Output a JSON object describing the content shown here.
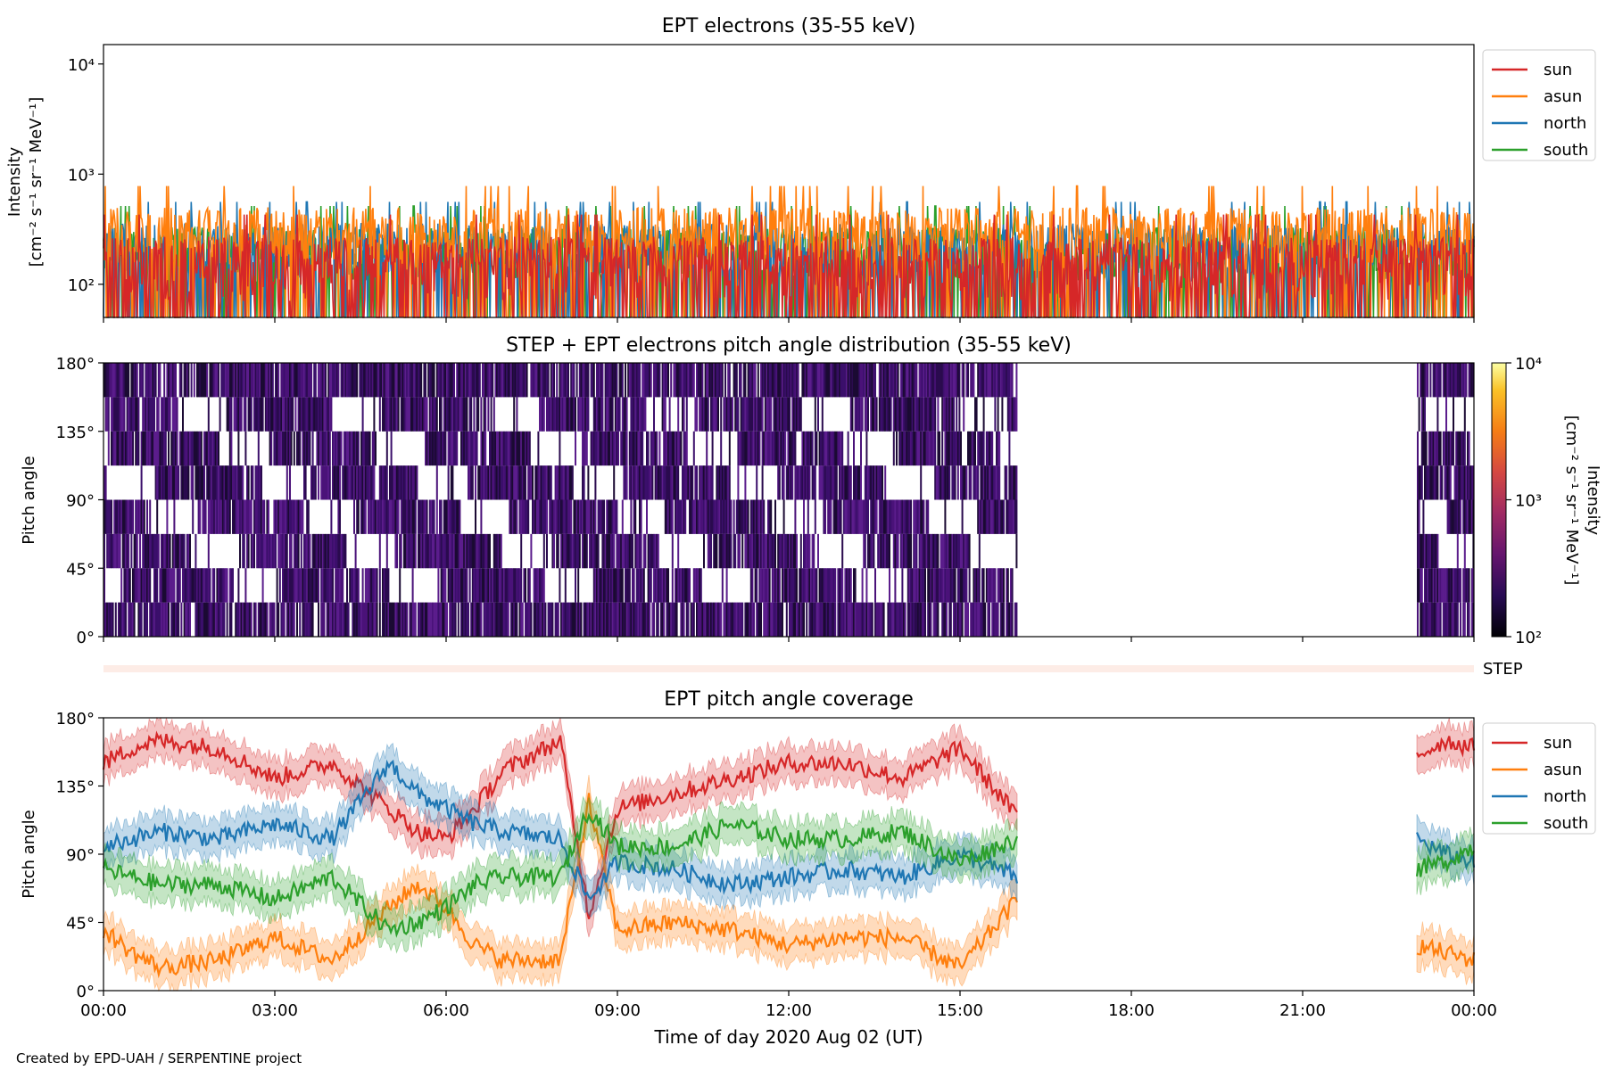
{
  "footer": "Created by EPD-UAH / SERPENTINE project",
  "colors": {
    "sun": "#d62728",
    "asun": "#ff7f0e",
    "north": "#1f77b4",
    "south": "#2ca02c",
    "pad_low": "#2a0b4e",
    "pad_high": "#5b1d8c",
    "step_strip": "#fdece6"
  },
  "chart_data": [
    {
      "type": "line",
      "title": "EPT electrons (35-55 keV)",
      "ylabel_line1": "Intensity",
      "ylabel_line2": "[cm⁻² s⁻¹ sr⁻¹ MeV⁻¹]",
      "yscale": "log",
      "ylim": [
        50,
        15000
      ],
      "yticks": [
        {
          "value": 100,
          "label": "10²"
        },
        {
          "value": 1000,
          "label": "10³"
        },
        {
          "value": 10000,
          "label": "10⁴"
        }
      ],
      "xlim_hours": [
        0,
        24
      ],
      "legend_position": "outside-right-top",
      "series": [
        {
          "name": "sun",
          "color": "#d62728",
          "baseline": 70,
          "spread": 200
        },
        {
          "name": "asun",
          "color": "#ff7f0e",
          "baseline": 150,
          "spread": 350
        },
        {
          "name": "north",
          "color": "#1f77b4",
          "baseline": 110,
          "spread": 250
        },
        {
          "name": "south",
          "color": "#2ca02c",
          "baseline": 100,
          "spread": 230
        }
      ]
    },
    {
      "type": "heatmap",
      "title": "STEP + EPT electrons pitch angle distribution (35-55 keV)",
      "ylabel": "Pitch angle",
      "ylim": [
        0,
        180
      ],
      "yticks": [
        "0°",
        "45°",
        "90°",
        "135°",
        "180°"
      ],
      "xlim_hours": [
        0,
        24
      ],
      "data_coverage_hours": [
        [
          0,
          16.0
        ],
        [
          23.0,
          24
        ]
      ],
      "colorbar": {
        "label_line1": "Intensity",
        "label_line2": "[cm⁻² s⁻¹ sr⁻¹ MeV⁻¹]",
        "scale": "log",
        "range": [
          100,
          10000
        ],
        "ticks": [
          "10²",
          "10³",
          "10⁴"
        ],
        "colormap": "inferno"
      },
      "step_label": "STEP"
    },
    {
      "type": "line",
      "title": "EPT pitch angle coverage",
      "ylabel": "Pitch angle",
      "xlabel": "Time of day 2020 Aug 02 (UT)",
      "ylim": [
        0,
        180
      ],
      "yticks": [
        "0°",
        "45°",
        "90°",
        "135°",
        "180°"
      ],
      "xlim_hours": [
        0,
        24
      ],
      "xtick_labels": [
        "00:00",
        "03:00",
        "06:00",
        "09:00",
        "12:00",
        "15:00",
        "18:00",
        "21:00",
        "00:00"
      ],
      "data_coverage_hours": [
        [
          0,
          16.0
        ],
        [
          23.0,
          24
        ]
      ],
      "legend_position": "outside-right-top",
      "series": [
        {
          "name": "sun",
          "color": "#d62728",
          "x": [
            0,
            0.5,
            1,
            2,
            3,
            4,
            5,
            5.5,
            6,
            6.5,
            7,
            8,
            8.5,
            9,
            10,
            11,
            12,
            13,
            14,
            15,
            16,
            23,
            23.5,
            24
          ],
          "y": [
            150,
            160,
            165,
            160,
            140,
            150,
            120,
            105,
            100,
            120,
            145,
            165,
            50,
            120,
            130,
            140,
            150,
            150,
            140,
            160,
            115,
            155,
            165,
            160
          ]
        },
        {
          "name": "asun",
          "color": "#ff7f0e",
          "x": [
            0,
            0.5,
            1,
            2,
            3,
            4,
            5,
            5.5,
            6,
            6.5,
            7,
            8,
            8.5,
            9,
            10,
            11,
            12,
            13,
            14,
            15,
            16,
            23,
            23.5,
            24
          ],
          "y": [
            40,
            25,
            15,
            20,
            35,
            20,
            55,
            70,
            55,
            30,
            20,
            20,
            125,
            40,
            45,
            40,
            30,
            35,
            35,
            15,
            60,
            30,
            25,
            20
          ]
        },
        {
          "name": "north",
          "color": "#1f77b4",
          "x": [
            0,
            0.5,
            1,
            2,
            3,
            4,
            5,
            5.5,
            6,
            6.5,
            7,
            8,
            8.5,
            9,
            10,
            11,
            12,
            13,
            14,
            15,
            16,
            23,
            23.5,
            24
          ],
          "y": [
            95,
            100,
            105,
            100,
            110,
            100,
            150,
            130,
            120,
            110,
            105,
            100,
            60,
            85,
            80,
            70,
            75,
            80,
            75,
            90,
            75,
            100,
            90,
            85
          ]
        },
        {
          "name": "south",
          "color": "#2ca02c",
          "x": [
            0,
            0.5,
            1,
            2,
            3,
            4,
            5,
            5.5,
            6,
            6.5,
            7,
            8,
            8.5,
            9,
            10,
            11,
            12,
            13,
            14,
            15,
            16,
            23,
            23.5,
            24
          ],
          "y": [
            80,
            75,
            70,
            70,
            60,
            75,
            40,
            45,
            55,
            70,
            75,
            75,
            120,
            95,
            95,
            110,
            100,
            100,
            105,
            85,
            100,
            80,
            85,
            95
          ]
        }
      ]
    }
  ]
}
